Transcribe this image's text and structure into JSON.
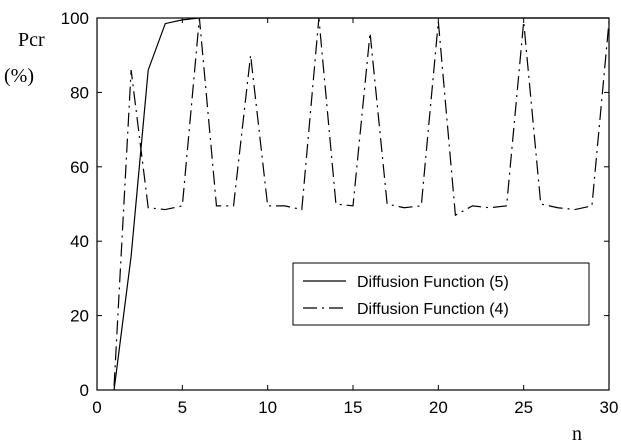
{
  "chart_data": {
    "type": "line",
    "title": "",
    "xlabel": "n",
    "ylabel": "Pcr",
    "ylabel_unit": "(%)",
    "xlim": [
      0,
      30
    ],
    "ylim": [
      0,
      100
    ],
    "xticks": [
      0,
      5,
      10,
      15,
      20,
      25,
      30
    ],
    "yticks": [
      0,
      20,
      40,
      60,
      80,
      100
    ],
    "grid": false,
    "legend_position": "lower-right",
    "series": [
      {
        "name": "Diffusion Function (5)",
        "line_style": "solid",
        "color": "#000000",
        "x": [
          1,
          2,
          3,
          4,
          5,
          6,
          7,
          8,
          9,
          10,
          11,
          12,
          13,
          14,
          15,
          16,
          17,
          18,
          19,
          20,
          21,
          22,
          23,
          24,
          25,
          26,
          27,
          28,
          29,
          30
        ],
        "y": [
          0,
          36,
          86,
          98.5,
          99.5,
          100,
          100,
          100,
          100,
          100,
          100,
          100,
          100,
          100,
          100,
          100,
          100,
          100,
          100,
          100,
          100,
          100,
          100,
          100,
          100,
          100,
          100,
          100,
          100,
          100
        ]
      },
      {
        "name": "Diffusion Function (4)",
        "line_style": "dash-dot",
        "color": "#000000",
        "x": [
          1,
          2,
          3,
          4,
          5,
          6,
          7,
          8,
          9,
          10,
          11,
          12,
          13,
          14,
          15,
          16,
          17,
          18,
          19,
          20,
          21,
          22,
          23,
          24,
          25,
          26,
          27,
          28,
          29,
          30
        ],
        "y": [
          1,
          86,
          49,
          48.5,
          49.5,
          100,
          49.5,
          49.5,
          90,
          49.5,
          49.5,
          48.5,
          100,
          50,
          49.5,
          96,
          50,
          49,
          49.5,
          99,
          47,
          49.5,
          49,
          49.5,
          99,
          50,
          49,
          48.5,
          49.5,
          99
        ]
      }
    ]
  }
}
